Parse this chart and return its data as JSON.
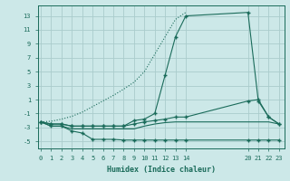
{
  "xlabel": "Humidex (Indice chaleur)",
  "bg_color": "#cce8e8",
  "grid_color": "#aacccc",
  "line_color": "#1a6b5a",
  "x_ticks": [
    0,
    1,
    2,
    3,
    4,
    5,
    6,
    7,
    8,
    9,
    10,
    11,
    12,
    13,
    14,
    20,
    21,
    22,
    23
  ],
  "y_ticks": [
    -5,
    -3,
    -1,
    1,
    3,
    5,
    7,
    9,
    11,
    13
  ],
  "xlim": [
    -0.3,
    23.5
  ],
  "ylim": [
    -6.0,
    14.5
  ],
  "curves": [
    {
      "x": [
        0,
        1,
        2,
        3,
        4,
        5,
        6,
        7,
        8,
        9,
        10,
        11,
        12,
        13,
        14,
        20,
        21,
        22,
        23
      ],
      "y": [
        -2.2,
        -2.8,
        -2.8,
        -3.5,
        -3.8,
        -4.7,
        -4.7,
        -4.7,
        -4.8,
        -4.8,
        -4.8,
        -4.8,
        -4.8,
        -4.8,
        -4.8,
        -4.8,
        -4.8,
        -4.8,
        -4.8
      ],
      "style": "-",
      "marker": "+"
    },
    {
      "x": [
        0,
        1,
        2,
        3,
        4,
        5,
        6,
        7,
        8,
        9,
        10,
        11,
        12,
        13,
        14,
        20,
        21,
        22,
        23
      ],
      "y": [
        -2.2,
        -2.8,
        -2.8,
        -3.2,
        -3.2,
        -3.2,
        -3.2,
        -3.2,
        -3.2,
        -3.2,
        -2.8,
        -2.5,
        -2.3,
        -2.2,
        -2.2,
        -2.2,
        -2.2,
        -2.2,
        -2.5
      ],
      "style": "-",
      "marker": null
    },
    {
      "x": [
        0,
        1,
        2,
        3,
        4,
        5,
        6,
        7,
        8,
        9,
        10,
        11,
        12,
        13,
        14
      ],
      "y": [
        -2.2,
        -2.1,
        -1.8,
        -1.4,
        -0.8,
        -0.0,
        0.8,
        1.6,
        2.5,
        3.5,
        5.0,
        7.5,
        10.0,
        12.5,
        13.5
      ],
      "style": ":",
      "marker": null
    },
    {
      "x": [
        0,
        1,
        2,
        3,
        4,
        5,
        6,
        7,
        8,
        9,
        10,
        11,
        12,
        13,
        14,
        20,
        21,
        22,
        23
      ],
      "y": [
        -2.2,
        -2.5,
        -2.5,
        -2.8,
        -2.8,
        -2.8,
        -2.8,
        -2.8,
        -2.8,
        -2.0,
        -1.8,
        -1.0,
        4.5,
        10.0,
        13.0,
        13.5,
        0.8,
        -1.5,
        -2.5
      ],
      "style": "-",
      "marker": "+"
    },
    {
      "x": [
        0,
        1,
        2,
        3,
        4,
        5,
        6,
        7,
        8,
        9,
        10,
        11,
        12,
        13,
        14,
        20,
        21,
        22,
        23
      ],
      "y": [
        -2.2,
        -2.5,
        -2.5,
        -2.8,
        -2.8,
        -2.8,
        -2.8,
        -2.8,
        -2.8,
        -2.5,
        -2.2,
        -2.0,
        -1.8,
        -1.5,
        -1.5,
        0.8,
        1.0,
        -1.5,
        -2.5
      ],
      "style": "-",
      "marker": "+"
    }
  ]
}
